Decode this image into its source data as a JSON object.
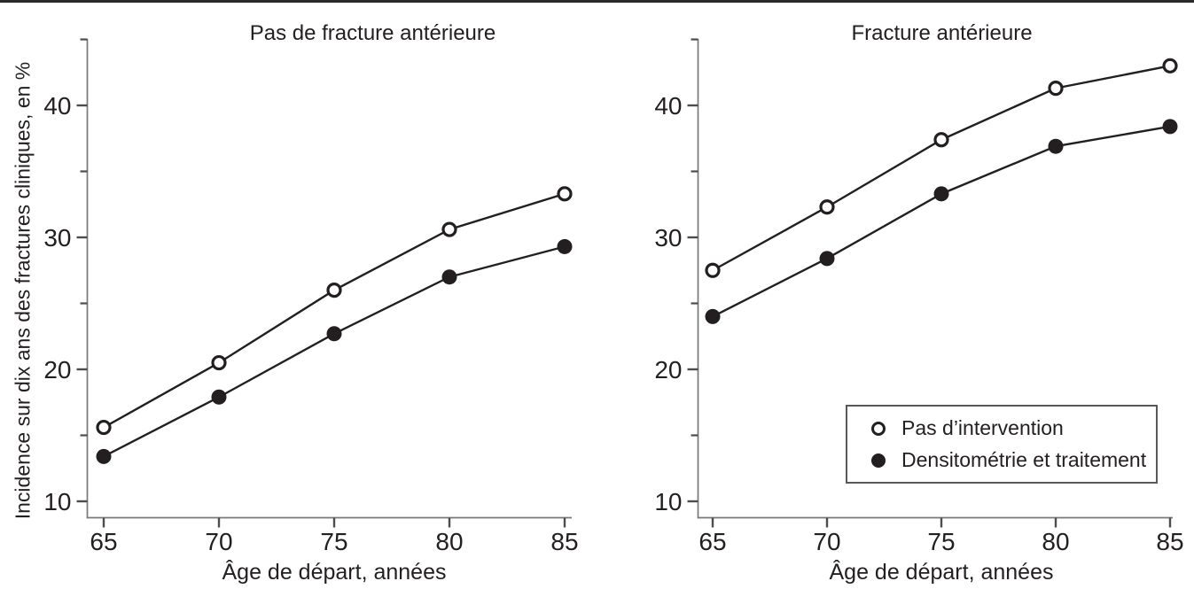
{
  "style": {
    "ink": "#231f20",
    "axis_line": "#77787b",
    "tick_line": "#4d4d4f",
    "background": "#ffffff"
  },
  "ylabel": "Incidence sur dix ans des fractures cliniques, en %",
  "xlabel": "Âge de départ, années",
  "legend": {
    "position": "bottom-right-of-right-panel",
    "items": [
      {
        "label": "Pas d’intervention",
        "marker": "open-circle"
      },
      {
        "label": "Densitométrie et traitement",
        "marker": "filled-circle"
      }
    ]
  },
  "chart_data": [
    {
      "type": "line",
      "title": "Pas de fracture antérieure",
      "xlabel": "Âge de départ, années",
      "ylabel": "Incidence sur dix ans des fractures cliniques, en %",
      "x": [
        65,
        70,
        75,
        80,
        85
      ],
      "xticks": [
        65,
        70,
        75,
        80,
        85
      ],
      "yticks_major": [
        10,
        20,
        30,
        40
      ],
      "yticks_minor": [
        15,
        25,
        35,
        45
      ],
      "ylim": [
        8.7,
        45
      ],
      "grid": false,
      "series": [
        {
          "name": "Pas d’intervention",
          "marker": "open",
          "values": [
            15.6,
            20.5,
            26.0,
            30.6,
            33.3
          ]
        },
        {
          "name": "Densitométrie et traitement",
          "marker": "filled",
          "values": [
            13.4,
            17.9,
            22.7,
            27.0,
            29.3
          ]
        }
      ]
    },
    {
      "type": "line",
      "title": "Fracture antérieure",
      "xlabel": "Âge de départ, années",
      "ylabel": "Incidence sur dix ans des fractures cliniques, en %",
      "x": [
        65,
        70,
        75,
        80,
        85
      ],
      "xticks": [
        65,
        70,
        75,
        80,
        85
      ],
      "yticks_major": [
        10,
        20,
        30,
        40
      ],
      "yticks_minor": [
        15,
        25,
        35,
        45
      ],
      "ylim": [
        8.7,
        45
      ],
      "grid": false,
      "legend_position": "lower-right",
      "series": [
        {
          "name": "Pas d’intervention",
          "marker": "open",
          "values": [
            27.5,
            32.3,
            37.4,
            41.3,
            43.0
          ]
        },
        {
          "name": "Densitométrie et traitement",
          "marker": "filled",
          "values": [
            24.0,
            28.4,
            33.3,
            36.9,
            38.4
          ]
        }
      ]
    }
  ]
}
